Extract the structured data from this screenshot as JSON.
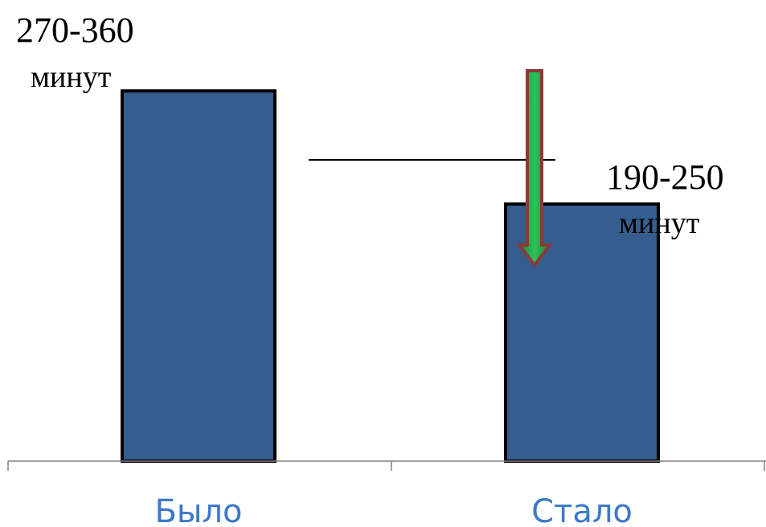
{
  "chart_data": {
    "type": "bar",
    "categories": [
      "Было",
      "Стало"
    ],
    "values": [
      360,
      250
    ],
    "ylim": [
      0,
      400
    ],
    "data_labels": [
      {
        "range": "270-360",
        "unit": "минут"
      },
      {
        "range": "190-250",
        "unit": "минут"
      }
    ],
    "title": "",
    "xlabel": "",
    "ylabel": "",
    "grid": false,
    "colors": {
      "bar_fill": "#355E8F",
      "bar_stroke": "#000000",
      "axis": "#808080",
      "category_text": "#3C78C8",
      "arrow_fill": "#1FA84A",
      "arrow_stroke": "#8B3A3A",
      "reference_line": "#000000"
    },
    "annotations": [
      {
        "kind": "down-arrow",
        "meaning": "reduction from Было to Стало"
      },
      {
        "kind": "reference-line"
      }
    ]
  }
}
